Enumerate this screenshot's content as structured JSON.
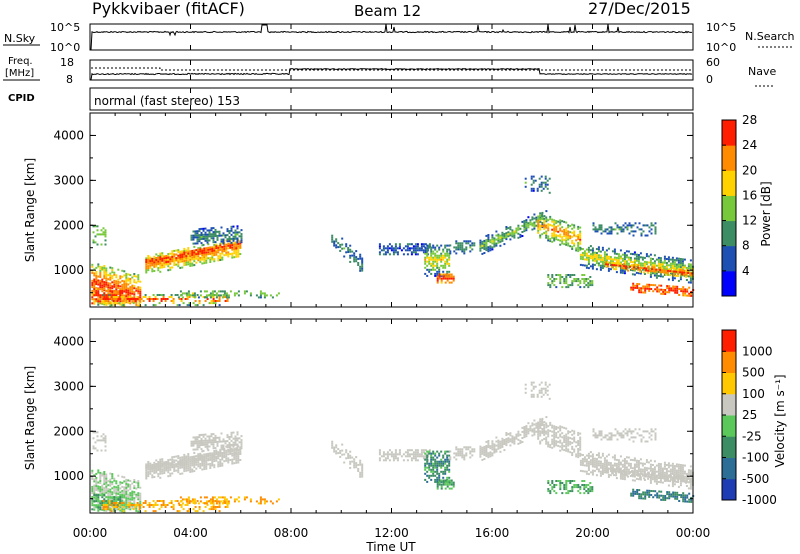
{
  "header": {
    "station": "Pykkvibaer (fitACF)",
    "beam": "Beam 12",
    "date": "27/Dec/2015"
  },
  "panels": {
    "nsky": {
      "label": "N.Sky",
      "tick_top": "10^5",
      "tick_bottom": "10^0",
      "right_label": "N.Search",
      "right_tick_top": "10^5",
      "right_tick_bottom": "10^0"
    },
    "freq": {
      "label_line1": "Freq.",
      "label_line2": "[MHz]",
      "tick_top": "18",
      "tick_bottom": "8",
      "right_label": "Nave",
      "right_tick_top": "60",
      "right_tick_bottom": "0"
    },
    "cpid": {
      "label": "CPID",
      "text": "normal (fast stereo) 153"
    }
  },
  "chart_data": [
    {
      "type": "heatmap",
      "name": "power",
      "ylabel": "Slant Range [km]",
      "yticks": [
        "1000",
        "2000",
        "3000",
        "4000"
      ],
      "ylim": [
        180,
        4500
      ],
      "colorbar_label": "Power [dB]",
      "colorbar_ticks": [
        "4",
        "8",
        "12",
        "16",
        "20",
        "24",
        "28"
      ],
      "colorbar_colors": [
        "#0000ff",
        "#1e50b4",
        "#3c8c64",
        "#78c83c",
        "#ffd200",
        "#ff8c00",
        "#ff1e00"
      ],
      "xlim": [
        "00:00",
        "24:00"
      ]
    },
    {
      "type": "heatmap",
      "name": "velocity",
      "ylabel": "Slant Range [km]",
      "yticks": [
        "1000",
        "2000",
        "3000",
        "4000"
      ],
      "ylim": [
        180,
        4500
      ],
      "colorbar_label": "Velocity [m s⁻¹]",
      "colorbar_ticks": [
        "1000",
        "500",
        "100",
        "25",
        "-25",
        "-100",
        "-500",
        "-1000"
      ],
      "colorbar_colors": [
        "#1e3cb4",
        "#2d6e96",
        "#3c8c64",
        "#5ac85a",
        "#c8c8c0",
        "#ffc800",
        "#ff8c00",
        "#ff1e00"
      ],
      "xlim": [
        "00:00",
        "24:00"
      ]
    }
  ],
  "xaxis": {
    "ticks": [
      "00:00",
      "04:00",
      "08:00",
      "12:00",
      "16:00",
      "20:00",
      "00:00"
    ],
    "label": "Time UT"
  }
}
